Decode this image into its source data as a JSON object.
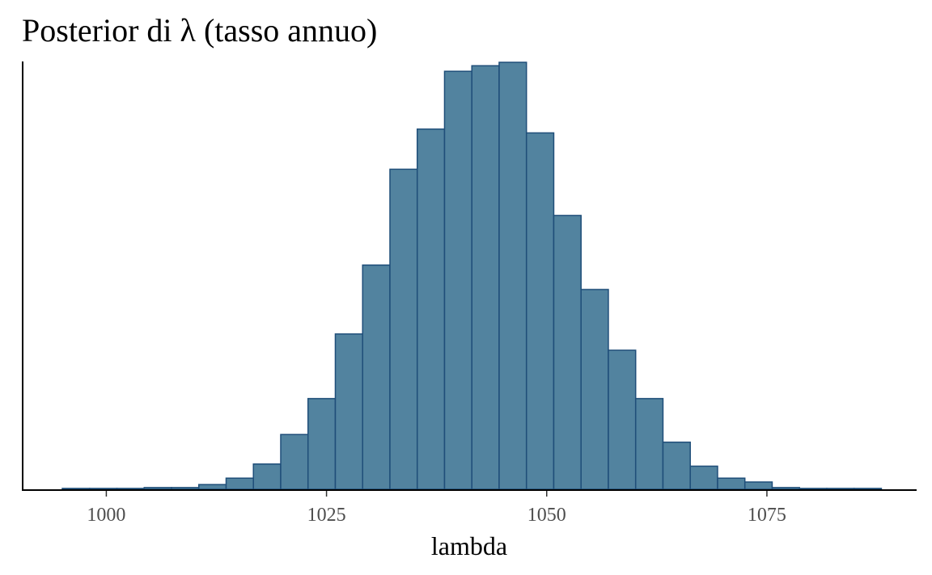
{
  "chart_data": {
    "type": "bar",
    "title": "Posterior di λ (tasso annuo)",
    "xlabel": "lambda",
    "ylabel": "",
    "xlim": [
      990.5,
      1092
    ],
    "ylim": [
      0,
      1000
    ],
    "bin_width": 3.1,
    "x_ticks": [
      1000,
      1025,
      1050,
      1075
    ],
    "x_tick_labels": [
      "1000",
      "1025",
      "1050",
      "1075"
    ],
    "bins": [
      {
        "x": 996.55,
        "value": 2
      },
      {
        "x": 999.65,
        "value": 2
      },
      {
        "x": 1002.75,
        "value": 2
      },
      {
        "x": 1005.85,
        "value": 4
      },
      {
        "x": 1008.95,
        "value": 4
      },
      {
        "x": 1012.05,
        "value": 11
      },
      {
        "x": 1015.15,
        "value": 26
      },
      {
        "x": 1018.25,
        "value": 59
      },
      {
        "x": 1021.35,
        "value": 128
      },
      {
        "x": 1024.45,
        "value": 212
      },
      {
        "x": 1027.55,
        "value": 363
      },
      {
        "x": 1030.65,
        "value": 524
      },
      {
        "x": 1033.75,
        "value": 748
      },
      {
        "x": 1036.85,
        "value": 842
      },
      {
        "x": 1039.95,
        "value": 977
      },
      {
        "x": 1043.05,
        "value": 990
      },
      {
        "x": 1046.15,
        "value": 998
      },
      {
        "x": 1049.25,
        "value": 833
      },
      {
        "x": 1052.35,
        "value": 640
      },
      {
        "x": 1055.45,
        "value": 467
      },
      {
        "x": 1058.55,
        "value": 325
      },
      {
        "x": 1061.65,
        "value": 212
      },
      {
        "x": 1064.75,
        "value": 110
      },
      {
        "x": 1067.85,
        "value": 54
      },
      {
        "x": 1070.95,
        "value": 26
      },
      {
        "x": 1074.05,
        "value": 17
      },
      {
        "x": 1077.15,
        "value": 4
      },
      {
        "x": 1080.25,
        "value": 2
      },
      {
        "x": 1083.35,
        "value": 2
      },
      {
        "x": 1086.45,
        "value": 2
      }
    ],
    "bar_fill": "#52839f",
    "bar_stroke": "#1f4e79",
    "grid": false,
    "legend": "none"
  }
}
